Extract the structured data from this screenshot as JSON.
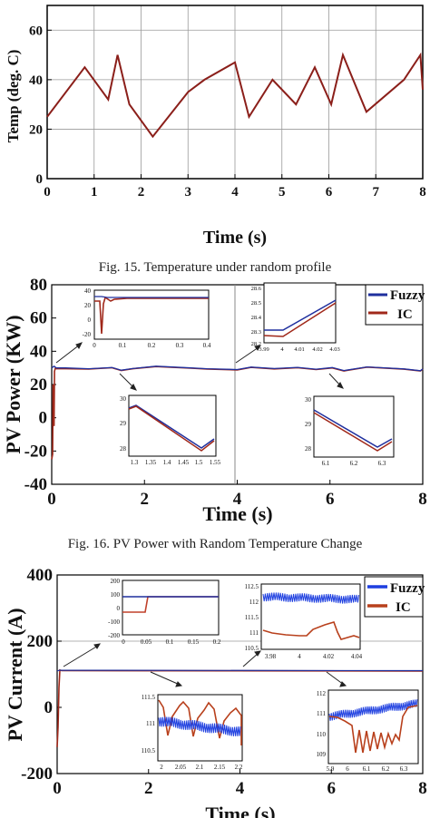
{
  "colors": {
    "fuzzy": "#1f2f9e",
    "ic": "#a0281a",
    "ic_bright": "#b8401c",
    "fuzzy_bright": "#1e3fe0",
    "axes": "#000000",
    "grid": "#8a8a8a"
  },
  "chart_data": [
    {
      "type": "line",
      "caption": "Fig. 15. Temperature under random profile",
      "xlabel": "Time (s)",
      "ylabel": "Temp (deg. C)",
      "xlim": [
        0,
        8
      ],
      "ylim": [
        0,
        70
      ],
      "xticks": [
        0,
        1,
        2,
        3,
        4,
        5,
        6,
        7,
        8
      ],
      "yticks": [
        0,
        20,
        40,
        60
      ],
      "grid": true,
      "series": [
        {
          "x": [
            0,
            0.8,
            1.3,
            1.5,
            1.75,
            2.25,
            3.0,
            3.35,
            4.0,
            4.3,
            4.8,
            5.3,
            5.7,
            6.05,
            6.3,
            6.8,
            7.6,
            7.95,
            8.0
          ],
          "y": [
            25,
            45,
            32,
            50,
            30,
            17,
            35,
            40,
            47,
            25,
            40,
            30,
            45,
            30,
            50,
            27,
            40,
            50,
            36
          ]
        }
      ]
    },
    {
      "type": "line",
      "caption": "Fig. 16. PV Power with Random Temperature Change",
      "xlabel": "Time (s)",
      "ylabel": "PV Power (KW)",
      "xlim": [
        0,
        8
      ],
      "ylim": [
        -40,
        80
      ],
      "xticks": [
        0,
        2,
        4,
        6,
        8
      ],
      "yticks": [
        -40,
        -20,
        0,
        20,
        40,
        60,
        80
      ],
      "legend": "top-right",
      "series": [
        {
          "name": "Fuzzy",
          "x": [
            0,
            0.05,
            0.1,
            0.3,
            0.8,
            1.3,
            1.5,
            1.75,
            2.25,
            3.0,
            3.35,
            4.0,
            4.3,
            4.8,
            5.3,
            5.7,
            6.05,
            6.3,
            6.8,
            7.6,
            7.95,
            8.0
          ],
          "y": [
            30,
            31,
            30,
            30,
            29.5,
            30.2,
            28.6,
            29.6,
            31,
            30,
            29.5,
            29,
            30.5,
            29.6,
            30.3,
            29.2,
            30.2,
            28.4,
            30.6,
            29.4,
            28.3,
            29.4
          ]
        },
        {
          "name": "IC",
          "x": [
            0,
            0.02,
            0.03,
            0.05,
            0.06,
            0.08,
            0.1,
            0.3,
            0.8,
            1.3,
            1.5,
            1.75,
            2.25,
            3.0,
            3.35,
            4.0,
            4.3,
            4.8,
            5.3,
            5.7,
            6.05,
            6.3,
            6.8,
            7.6,
            7.95,
            8.0
          ],
          "y": [
            -25,
            -22,
            20,
            -5,
            28,
            30,
            29.5,
            29.5,
            29.3,
            30.1,
            28.4,
            29.5,
            30.8,
            29.8,
            29.3,
            28.8,
            30.3,
            29.4,
            30.1,
            29,
            30,
            28.2,
            30.5,
            29.2,
            28.1,
            29.2
          ]
        }
      ],
      "insets": [
        {
          "xlim": [
            0,
            0.4
          ],
          "ylim": [
            -20,
            40
          ],
          "xticks": [
            "0",
            "0.1",
            "0.2",
            "0.3",
            "0.4"
          ],
          "yticks": [
            "-20",
            "0",
            "20",
            "40"
          ]
        },
        {
          "xlim": [
            3.99,
            4.03
          ],
          "ylim": [
            28.2,
            28.6
          ],
          "xticks": [
            "3.99",
            "4",
            "4.01",
            "4.02",
            "4.03"
          ],
          "yticks": [
            "28.2",
            "28.3",
            "28.4",
            "28.5",
            "28.6"
          ]
        },
        {
          "xlim": [
            1.3,
            1.55
          ],
          "ylim": [
            28,
            30
          ],
          "xticks": [
            "1.3",
            "1.35",
            "1.4",
            "1.45",
            "1.5",
            "1.55"
          ],
          "yticks": [
            "28",
            "29",
            "30"
          ]
        },
        {
          "xlim": [
            6.1,
            6.3
          ],
          "ylim": [
            28,
            30
          ],
          "xticks": [
            "6.1",
            "6.2",
            "6.3"
          ],
          "yticks": [
            "28",
            "29",
            "30"
          ]
        }
      ]
    },
    {
      "type": "line",
      "xlabel": "Time (s)",
      "ylabel": "PV Current (A)",
      "xlim": [
        0,
        8
      ],
      "ylim": [
        -200,
        400
      ],
      "xticks": [
        0,
        2,
        4,
        6,
        8
      ],
      "yticks": [
        -200,
        0,
        200,
        400
      ],
      "legend": "top-right",
      "series": [
        {
          "name": "Fuzzy",
          "x": [
            0,
            0.05,
            0.1,
            8
          ],
          "y": [
            110,
            112,
            112,
            111
          ]
        },
        {
          "name": "IC",
          "x": [
            0,
            0.02,
            0.04,
            0.06,
            0.1,
            8
          ],
          "y": [
            -120,
            -60,
            60,
            113,
            111,
            110
          ]
        }
      ],
      "insets": [
        {
          "xlim": [
            0,
            0.2
          ],
          "ylim": [
            -200,
            200
          ],
          "xticks": [
            "0",
            "0.05",
            "0.1",
            "0.15",
            "0.2"
          ],
          "yticks": [
            "-200",
            "-100",
            "0",
            "100",
            "200"
          ]
        },
        {
          "xlim": [
            3.98,
            4.04
          ],
          "ylim": [
            110.5,
            112.5
          ],
          "xticks": [
            "3.98",
            "4",
            "4.02",
            "4.04"
          ],
          "yticks": [
            "110.5",
            "111",
            "111.5",
            "112",
            "112.5"
          ]
        },
        {
          "xlim": [
            2,
            2.2
          ],
          "ylim": [
            110.5,
            111.5
          ],
          "xticks": [
            "2",
            "2.05",
            "2.1",
            "2.15",
            "2.2"
          ],
          "yticks": [
            "110.5",
            "111",
            "111.5"
          ]
        },
        {
          "xlim": [
            5.9,
            6.35
          ],
          "ylim": [
            109,
            112
          ],
          "xticks": [
            "5.9",
            "6",
            "6.1",
            "6.2",
            "6.3"
          ],
          "yticks": [
            "109",
            "110",
            "111",
            "112"
          ]
        }
      ]
    }
  ]
}
